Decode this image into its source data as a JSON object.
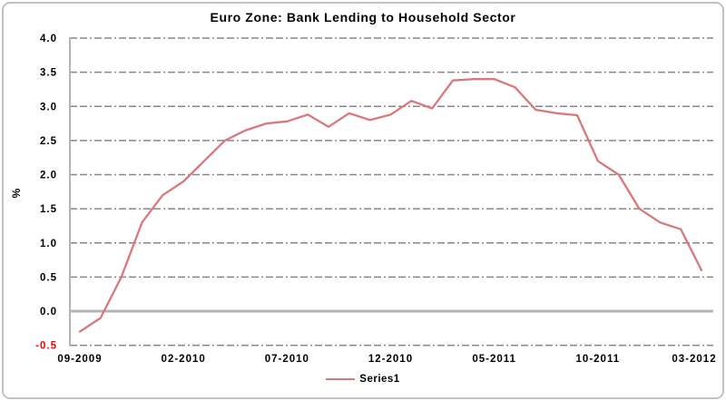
{
  "chart_data": {
    "type": "line",
    "title": "Euro Zone: Bank Lending to Household Sector",
    "xlabel": "",
    "ylabel": "%",
    "ylim": [
      -0.5,
      4.0
    ],
    "grid": true,
    "legend_position": "bottom",
    "categories": [
      "09-2009",
      "10-2009",
      "11-2009",
      "12-2009",
      "01-2010",
      "02-2010",
      "03-2010",
      "04-2010",
      "05-2010",
      "06-2010",
      "07-2010",
      "08-2010",
      "09-2010",
      "10-2010",
      "11-2010",
      "12-2010",
      "01-2011",
      "02-2011",
      "03-2011",
      "04-2011",
      "05-2011",
      "06-2011",
      "07-2011",
      "08-2011",
      "09-2011",
      "10-2011",
      "11-2011",
      "12-2011",
      "01-2012",
      "02-2012",
      "03-2012"
    ],
    "series": [
      {
        "name": "Series1",
        "values": [
          -0.3,
          -0.1,
          0.5,
          1.3,
          1.7,
          1.9,
          2.2,
          2.5,
          2.65,
          2.75,
          2.78,
          2.88,
          2.7,
          2.9,
          2.8,
          2.88,
          3.08,
          2.97,
          3.38,
          3.4,
          3.4,
          3.28,
          2.95,
          2.9,
          2.87,
          2.2,
          2.0,
          1.5,
          1.3,
          1.2,
          0.6
        ]
      }
    ],
    "y_ticks": [
      "4.0",
      "3.5",
      "3.0",
      "2.5",
      "2.0",
      "1.5",
      "1.0",
      "0.5",
      "0.0",
      "-0.5"
    ],
    "x_ticks": [
      {
        "index": 0,
        "label": "09-2009"
      },
      {
        "index": 5,
        "label": "02-2010"
      },
      {
        "index": 10,
        "label": "07-2010"
      },
      {
        "index": 15,
        "label": "12-2010"
      },
      {
        "index": 20,
        "label": "05-2011"
      },
      {
        "index": 25,
        "label": "10-2011"
      },
      {
        "index": 30,
        "label": "03-2012"
      }
    ],
    "colors": {
      "line": "#d9787c",
      "grid": "#878787",
      "axis": "#b4b4b4",
      "tick_text": "#000000",
      "negative_tick_text": "#ff0000",
      "frame_border": "#c2c2c2",
      "background": "#ffffff"
    },
    "legend": {
      "label": "Series1"
    }
  }
}
